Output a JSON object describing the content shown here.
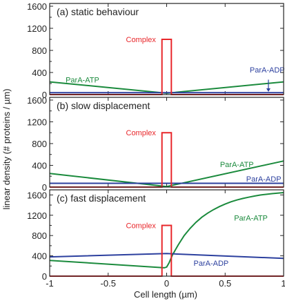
{
  "figure": {
    "ylabel": "linear density (# proteins / µm)",
    "xlabel": "Cell length (µm)"
  },
  "colors": {
    "complex": "#e8262a",
    "parA_atp": "#1a8a3c",
    "parA_adp": "#2b3f9e",
    "axis": "#222222"
  },
  "chart_data": [
    {
      "type": "line",
      "title": "(a)  static behaviour",
      "xlim": [
        -1,
        1
      ],
      "ylim": [
        0,
        1650
      ],
      "grid": false,
      "x_ticks": [],
      "y_ticks": [
        0,
        400,
        800,
        1200,
        1600
      ],
      "y_tick_labels": [
        "0",
        "400",
        "800",
        "1200",
        "1600"
      ],
      "series": [
        {
          "name": "ParA-ATP",
          "color": "#1a8a3c",
          "x": [
            -1,
            0,
            1
          ],
          "y": [
            230,
            25,
            230
          ]
        },
        {
          "name": "ParA-ADP",
          "color": "#2b3f9e",
          "x": [
            -1,
            1
          ],
          "y": [
            35,
            35
          ]
        },
        {
          "name": "Complex",
          "color": "#e8262a",
          "x": [
            -1,
            -0.04,
            -0.04,
            0.04,
            0.04,
            1
          ],
          "y": [
            0,
            0,
            1000,
            1000,
            0,
            0
          ]
        }
      ],
      "annotations": [
        {
          "text": "Complex",
          "x": -0.22,
          "y": 1000,
          "color": "#e8262a"
        },
        {
          "text": "ParA-ATP",
          "x": -0.72,
          "y": 270,
          "color": "#1a8a3c"
        },
        {
          "text": "ParA-ADP",
          "x": 0.86,
          "y": 450,
          "color": "#2b3f9e"
        }
      ],
      "arrow": {
        "from": [
          0.87,
          270
        ],
        "to": [
          0.87,
          50
        ],
        "color": "#2b3f9e"
      }
    },
    {
      "type": "line",
      "title": "(b)  slow displacement",
      "xlim": [
        -1,
        1
      ],
      "ylim": [
        0,
        1650
      ],
      "grid": false,
      "x_ticks": [],
      "y_ticks": [
        0,
        400,
        800,
        1200,
        1600
      ],
      "y_tick_labels": [
        "0",
        "400",
        "800",
        "1200",
        "1600"
      ],
      "series": [
        {
          "name": "ParA-ATP",
          "color": "#1a8a3c",
          "x": [
            -1,
            0,
            1
          ],
          "y": [
            250,
            10,
            480
          ]
        },
        {
          "name": "ParA-ADP",
          "color": "#2b3f9e",
          "x": [
            -1,
            1
          ],
          "y": [
            70,
            70
          ]
        },
        {
          "name": "Complex",
          "color": "#e8262a",
          "x": [
            -1,
            -0.04,
            -0.04,
            0.04,
            0.04,
            1
          ],
          "y": [
            0,
            0,
            1000,
            1000,
            0,
            0
          ]
        }
      ],
      "annotations": [
        {
          "text": "Complex",
          "x": -0.22,
          "y": 1000,
          "color": "#e8262a"
        },
        {
          "text": "ParA-ATP",
          "x": 0.6,
          "y": 420,
          "color": "#1a8a3c"
        },
        {
          "text": "ParA-ADP",
          "x": 0.83,
          "y": 155,
          "color": "#2b3f9e"
        }
      ]
    },
    {
      "type": "line",
      "title": "(c)  fast displacement",
      "xlim": [
        -1,
        1
      ],
      "ylim": [
        0,
        1700
      ],
      "grid": false,
      "x_ticks": [
        -1,
        -0.5,
        0,
        0.5,
        1
      ],
      "x_tick_labels": [
        "-1",
        "-0.5",
        "0",
        "0.5",
        "1"
      ],
      "y_ticks": [
        0,
        400,
        800,
        1200,
        1600
      ],
      "y_tick_labels": [
        "0",
        "400",
        "800",
        "1200",
        "1600"
      ],
      "series": [
        {
          "name": "ParA-ATP",
          "color": "#1a8a3c",
          "x": [
            -1,
            -0.02,
            0,
            0.02,
            0.05,
            0.1,
            0.15,
            0.2,
            0.25,
            0.3,
            0.35,
            0.4,
            0.45,
            0.5,
            0.55,
            0.6,
            0.65,
            0.7,
            0.75,
            0.8,
            0.85,
            0.9,
            0.95,
            1
          ],
          "y": [
            310,
            165,
            180,
            260,
            420,
            620,
            800,
            940,
            1060,
            1160,
            1240,
            1310,
            1370,
            1420,
            1465,
            1500,
            1530,
            1555,
            1578,
            1598,
            1612,
            1625,
            1636,
            1645
          ]
        },
        {
          "name": "ParA-ADP",
          "color": "#2b3f9e",
          "x": [
            -1,
            0,
            1
          ],
          "y": [
            380,
            445,
            350
          ]
        },
        {
          "name": "Complex",
          "color": "#e8262a",
          "x": [
            -1,
            -0.04,
            -0.04,
            0.04,
            0.04,
            1
          ],
          "y": [
            0,
            0,
            1000,
            1000,
            0,
            0
          ]
        }
      ],
      "annotations": [
        {
          "text": "Complex",
          "x": -0.22,
          "y": 1000,
          "color": "#e8262a"
        },
        {
          "text": "ParA-ATP",
          "x": 0.72,
          "y": 1150,
          "color": "#1a8a3c"
        },
        {
          "text": "ParA-ADP",
          "x": 0.38,
          "y": 260,
          "color": "#2b3f9e"
        }
      ]
    }
  ]
}
